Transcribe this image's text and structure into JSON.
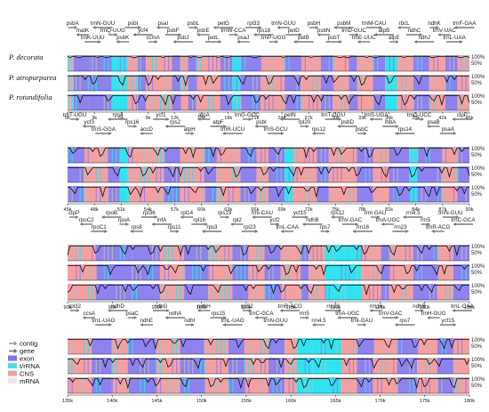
{
  "species": [
    "P. decorata",
    "P. atropurpurea",
    "P. rotundifolia"
  ],
  "legend": [
    {
      "label": "contig",
      "color": "#9a9a9a",
      "kind": "arrow"
    },
    {
      "label": "gene",
      "color": "#6d6d6d",
      "kind": "arrow"
    },
    {
      "label": "exon",
      "color": "#7b74e8",
      "kind": "box"
    },
    {
      "label": "t/rRNA",
      "color": "#43e1ee",
      "kind": "box"
    },
    {
      "label": "CNS",
      "color": "#f39e9e",
      "kind": "box"
    },
    {
      "label": "mRNA",
      "color": "#e6e6e6",
      "kind": "box"
    }
  ],
  "colors": {
    "exon": "#8d82ee",
    "trna": "#2fe4ef",
    "cns": "#f5a0a0",
    "mrna": "#bbbbbb",
    "gene_arrow": "#7a7a7a"
  },
  "percent_labels": [
    "100%",
    "50%"
  ],
  "panels": [
    {
      "axis_ticks": [
        "0k",
        "3k",
        "6k",
        "9k",
        "12k",
        "15k",
        "18k",
        "21k",
        "24k",
        "27k",
        "30k",
        "33k",
        "36k",
        "39k",
        "42k",
        "45k"
      ],
      "genes": [
        "psbA",
        "matK",
        "trnK-UUU",
        "trnN-GUU",
        "trnQ-UUG",
        "psbK",
        "psbI",
        "ycf4",
        "ccmA",
        "psaI",
        "psbF",
        "psbJ",
        "psbL",
        "psbE",
        "petL",
        "petG",
        "trnW-CCA",
        "psaJ",
        "rpl33",
        "rps18",
        "trnP-UGG",
        "trnN-GUU",
        "petD",
        "petB",
        "psbH",
        "psbN",
        "psbT",
        "psbM",
        "trnD-GUC",
        "trnE-UUC",
        "trnM-CAU",
        "atpB",
        "atpE",
        "rbcL",
        "ndhC",
        "ndhJ",
        "ndhK",
        "trnV-UAC",
        "trnL-UAA",
        "trnF-GAA"
      ],
      "segments": [
        {
          "s": 0.0,
          "e": 0.015,
          "t": "mrna"
        },
        {
          "s": 0.015,
          "e": 0.055,
          "t": "exon"
        },
        {
          "s": 0.055,
          "e": 0.11,
          "t": "exon"
        },
        {
          "s": 0.11,
          "e": 0.15,
          "t": "trna"
        },
        {
          "s": 0.15,
          "e": 0.175,
          "t": "cns"
        },
        {
          "s": 0.175,
          "e": 0.195,
          "t": "exon"
        },
        {
          "s": 0.195,
          "e": 0.26,
          "t": "cns"
        },
        {
          "s": 0.26,
          "e": 0.28,
          "t": "exon"
        },
        {
          "s": 0.28,
          "e": 0.3,
          "t": "cns"
        },
        {
          "s": 0.3,
          "e": 0.32,
          "t": "exon"
        },
        {
          "s": 0.32,
          "e": 0.38,
          "t": "cns"
        },
        {
          "s": 0.38,
          "e": 0.41,
          "t": "exon"
        },
        {
          "s": 0.41,
          "e": 0.43,
          "t": "trna"
        },
        {
          "s": 0.43,
          "e": 0.48,
          "t": "exon"
        },
        {
          "s": 0.48,
          "e": 0.54,
          "t": "cns"
        },
        {
          "s": 0.54,
          "e": 0.58,
          "t": "exon"
        },
        {
          "s": 0.58,
          "e": 0.63,
          "t": "cns"
        },
        {
          "s": 0.63,
          "e": 0.66,
          "t": "exon"
        },
        {
          "s": 0.66,
          "e": 0.7,
          "t": "cns"
        },
        {
          "s": 0.7,
          "e": 0.72,
          "t": "exon"
        },
        {
          "s": 0.72,
          "e": 0.76,
          "t": "cns"
        },
        {
          "s": 0.76,
          "e": 0.79,
          "t": "exon"
        },
        {
          "s": 0.79,
          "e": 0.82,
          "t": "trna"
        },
        {
          "s": 0.82,
          "e": 0.86,
          "t": "cns"
        },
        {
          "s": 0.86,
          "e": 0.9,
          "t": "exon"
        },
        {
          "s": 0.9,
          "e": 0.94,
          "t": "cns"
        },
        {
          "s": 0.94,
          "e": 0.97,
          "t": "exon"
        },
        {
          "s": 0.97,
          "e": 1.0,
          "t": "cns"
        }
      ]
    },
    {
      "axis_ticks": [
        "45k",
        "48k",
        "51k",
        "54k",
        "57k",
        "60k",
        "63k",
        "66k",
        "69k",
        "72k",
        "75k",
        "78k",
        "81k",
        "84k",
        "87k",
        "90k"
      ],
      "genes": [
        "trnT-UGU",
        "ycf3",
        "trnS-GGA",
        "rps4",
        "rps16",
        "accD",
        "ycf1",
        "rps2",
        "atpH",
        "atpA",
        "atpF",
        "trnR-UCU",
        "trnG-GCC",
        "psbI",
        "trnS-GCU",
        "petN",
        "rpl20",
        "rps12",
        "trnT-GGU",
        "psbD",
        "psbC",
        "trnS-UGA",
        "lhbA",
        "rps14",
        "trnG-UCC",
        "psaB",
        "psaA",
        "clpP"
      ],
      "segments": [
        {
          "s": 0.0,
          "e": 0.04,
          "t": "exon"
        },
        {
          "s": 0.04,
          "e": 0.1,
          "t": "cns"
        },
        {
          "s": 0.1,
          "e": 0.13,
          "t": "exon"
        },
        {
          "s": 0.13,
          "e": 0.15,
          "t": "trna"
        },
        {
          "s": 0.15,
          "e": 0.24,
          "t": "cns"
        },
        {
          "s": 0.24,
          "e": 0.28,
          "t": "exon"
        },
        {
          "s": 0.28,
          "e": 0.34,
          "t": "cns"
        },
        {
          "s": 0.34,
          "e": 0.37,
          "t": "exon"
        },
        {
          "s": 0.37,
          "e": 0.43,
          "t": "cns"
        },
        {
          "s": 0.43,
          "e": 0.47,
          "t": "exon"
        },
        {
          "s": 0.47,
          "e": 0.5,
          "t": "cns"
        },
        {
          "s": 0.5,
          "e": 0.54,
          "t": "exon"
        },
        {
          "s": 0.54,
          "e": 0.56,
          "t": "trna"
        },
        {
          "s": 0.56,
          "e": 0.62,
          "t": "cns"
        },
        {
          "s": 0.62,
          "e": 0.65,
          "t": "exon"
        },
        {
          "s": 0.65,
          "e": 0.72,
          "t": "cns"
        },
        {
          "s": 0.72,
          "e": 0.76,
          "t": "exon"
        },
        {
          "s": 0.76,
          "e": 0.8,
          "t": "cns"
        },
        {
          "s": 0.8,
          "e": 0.85,
          "t": "exon"
        },
        {
          "s": 0.85,
          "e": 0.87,
          "t": "trna"
        },
        {
          "s": 0.87,
          "e": 0.93,
          "t": "exon"
        },
        {
          "s": 0.93,
          "e": 0.97,
          "t": "cns"
        },
        {
          "s": 0.97,
          "e": 1.0,
          "t": "exon"
        }
      ]
    },
    {
      "axis_ticks": [
        "90k",
        "95k",
        "100k",
        "105k",
        "110k",
        "115k",
        "120k",
        "125k",
        "130k",
        "135k"
      ],
      "genes": [
        "clpP",
        "rpoC2",
        "rpoC1",
        "rpoB",
        "rpoA",
        "rps8",
        "rpl36",
        "infA",
        "rps11",
        "rpl14",
        "rpl16",
        "rps3",
        "rps19",
        "rpl2",
        "rpl23",
        "trnI-CAU",
        "ycf2",
        "trnL-CAA",
        "ycf15",
        "ndhB",
        "rps7",
        "rps12",
        "trnV-GAC",
        "rrn16",
        "trnI-GAU",
        "trnA-UGC",
        "rrn23",
        "rrn4.5",
        "rrn5",
        "trnR-ACG",
        "trnN-GUU",
        "trnC-GCA"
      ],
      "segments": [
        {
          "s": 0.0,
          "e": 0.07,
          "t": "cns"
        },
        {
          "s": 0.07,
          "e": 0.16,
          "t": "exon"
        },
        {
          "s": 0.16,
          "e": 0.23,
          "t": "exon"
        },
        {
          "s": 0.23,
          "e": 0.29,
          "t": "cns"
        },
        {
          "s": 0.29,
          "e": 0.35,
          "t": "exon"
        },
        {
          "s": 0.35,
          "e": 0.41,
          "t": "cns"
        },
        {
          "s": 0.41,
          "e": 0.45,
          "t": "exon"
        },
        {
          "s": 0.45,
          "e": 0.49,
          "t": "cns"
        },
        {
          "s": 0.49,
          "e": 0.53,
          "t": "exon"
        },
        {
          "s": 0.53,
          "e": 0.58,
          "t": "cns"
        },
        {
          "s": 0.58,
          "e": 0.6,
          "t": "exon"
        },
        {
          "s": 0.6,
          "e": 0.64,
          "t": "cns"
        },
        {
          "s": 0.64,
          "e": 0.69,
          "t": "trna"
        },
        {
          "s": 0.69,
          "e": 0.73,
          "t": "trna"
        },
        {
          "s": 0.73,
          "e": 0.78,
          "t": "cns"
        },
        {
          "s": 0.78,
          "e": 0.8,
          "t": "exon"
        },
        {
          "s": 0.8,
          "e": 0.86,
          "t": "cns"
        },
        {
          "s": 0.86,
          "e": 0.92,
          "t": "exon"
        },
        {
          "s": 0.92,
          "e": 0.96,
          "t": "cns"
        },
        {
          "s": 0.96,
          "e": 1.0,
          "t": "exon"
        }
      ]
    },
    {
      "axis_ticks": [
        "135k",
        "140k",
        "145k",
        "150k",
        "155k",
        "160k",
        "165k",
        "170k",
        "175k",
        "180k"
      ],
      "genes": [
        "rpl32",
        "ccsA",
        "trnL-UAG",
        "ndhD",
        "psaC",
        "ndhE",
        "ndhG",
        "ndhA",
        "ndhI",
        "ndhH",
        "rps15",
        "trnL-UAG",
        "rpl32",
        "trnC-GCA",
        "trnN-GUU",
        "trnR-ACG",
        "rrn5",
        "rrn4.5",
        "rrn23",
        "trnA-UGC",
        "trnI-GAU",
        "rrn16",
        "trnV-GAC",
        "rps7",
        "ndhB",
        "trnH-GUG",
        "ycf15",
        "trnL-CAA"
      ],
      "segments": [
        {
          "s": 0.0,
          "e": 0.06,
          "t": "cns"
        },
        {
          "s": 0.06,
          "e": 0.11,
          "t": "exon"
        },
        {
          "s": 0.11,
          "e": 0.15,
          "t": "cns"
        },
        {
          "s": 0.15,
          "e": 0.22,
          "t": "exon"
        },
        {
          "s": 0.22,
          "e": 0.28,
          "t": "cns"
        },
        {
          "s": 0.28,
          "e": 0.34,
          "t": "exon"
        },
        {
          "s": 0.34,
          "e": 0.4,
          "t": "cns"
        },
        {
          "s": 0.4,
          "e": 0.44,
          "t": "exon"
        },
        {
          "s": 0.44,
          "e": 0.5,
          "t": "cns"
        },
        {
          "s": 0.5,
          "e": 0.54,
          "t": "exon"
        },
        {
          "s": 0.54,
          "e": 0.57,
          "t": "cns"
        },
        {
          "s": 0.57,
          "e": 0.61,
          "t": "trna"
        },
        {
          "s": 0.61,
          "e": 0.68,
          "t": "trna"
        },
        {
          "s": 0.68,
          "e": 0.72,
          "t": "cns"
        },
        {
          "s": 0.72,
          "e": 0.76,
          "t": "exon"
        },
        {
          "s": 0.76,
          "e": 0.82,
          "t": "cns"
        },
        {
          "s": 0.82,
          "e": 0.87,
          "t": "exon"
        },
        {
          "s": 0.87,
          "e": 0.92,
          "t": "cns"
        },
        {
          "s": 0.92,
          "e": 0.96,
          "t": "exon"
        },
        {
          "s": 0.96,
          "e": 1.0,
          "t": "cns"
        }
      ]
    }
  ]
}
